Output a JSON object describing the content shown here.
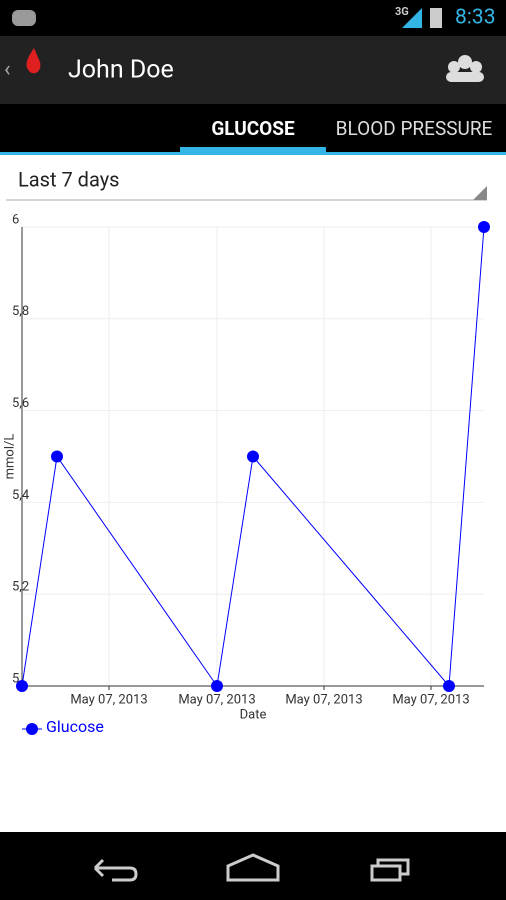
{
  "status_bar": {
    "network": "3G",
    "time": "8:33"
  },
  "app_bar": {
    "title": "John Doe"
  },
  "tabs": [
    "GLUCOSE",
    "BLOOD PRESSURE"
  ],
  "range_selector": {
    "label": "Last 7 days"
  },
  "chart_data": {
    "type": "line",
    "x_label": "Date",
    "y_label": "mmol/L",
    "x": [
      0,
      35,
      195,
      231,
      427,
      462
    ],
    "series": [
      {
        "name": "Glucose",
        "color": "#0000ff",
        "values": [
          5,
          5.5,
          5,
          5.5,
          5,
          6
        ]
      }
    ],
    "xlim": [
      0,
      462
    ],
    "xticks": [
      {
        "value": 87,
        "label": "May 07, 2013"
      },
      {
        "value": 195,
        "label": "May 07, 2013"
      },
      {
        "value": 302,
        "label": "May 07, 2013"
      },
      {
        "value": 409,
        "label": "May 07, 2013"
      }
    ],
    "ylim": [
      5,
      6
    ],
    "yticks": [
      5,
      {
        "value": 5.2,
        "label": "5,2"
      },
      {
        "value": 5.4,
        "label": "5,4"
      },
      {
        "value": 5.6,
        "label": "5,6"
      },
      {
        "value": 5.8,
        "label": "5,8"
      },
      6
    ],
    "grid": true
  }
}
